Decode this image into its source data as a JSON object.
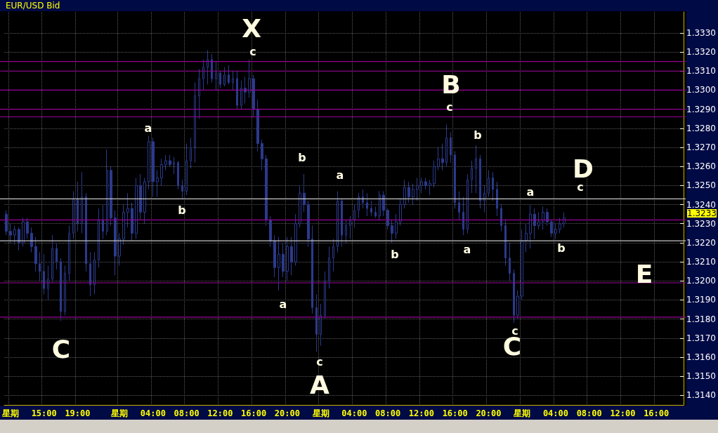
{
  "chart_data": {
    "type": "candlestick",
    "title": "EUR/USD Bid",
    "color": "#2b3a8c",
    "grid": true,
    "ylim": [
      1.3135,
      1.3341
    ],
    "yticks": [
      {
        "value": 1.314,
        "label": "1.3140"
      },
      {
        "value": 1.315,
        "label": "1.3150"
      },
      {
        "value": 1.316,
        "label": "1.3160"
      },
      {
        "value": 1.317,
        "label": "1.3170"
      },
      {
        "value": 1.318,
        "label": "1.3180"
      },
      {
        "value": 1.319,
        "label": "1.3190"
      },
      {
        "value": 1.32,
        "label": "1.3200"
      },
      {
        "value": 1.321,
        "label": "1.3210"
      },
      {
        "value": 1.322,
        "label": "1.3220"
      },
      {
        "value": 1.323,
        "label": "1.3230"
      },
      {
        "value": 1.324,
        "label": "1.3240"
      },
      {
        "value": 1.325,
        "label": "1.3250"
      },
      {
        "value": 1.326,
        "label": "1.3260"
      },
      {
        "value": 1.327,
        "label": "1.3270"
      },
      {
        "value": 1.328,
        "label": "1.3280"
      },
      {
        "value": 1.329,
        "label": "1.3290"
      },
      {
        "value": 1.33,
        "label": "1.3300"
      },
      {
        "value": 1.331,
        "label": "1.3310"
      },
      {
        "value": 1.332,
        "label": "1.3320"
      },
      {
        "value": 1.333,
        "label": "1.3330"
      }
    ],
    "categories": [
      null,
      "星期",
      null,
      null,
      null,
      null,
      null,
      null,
      null,
      "15:00",
      null,
      null,
      null,
      null,
      null,
      null,
      null,
      "19:00",
      null,
      null,
      null,
      null,
      null,
      null,
      null,
      null,
      null,
      "星期",
      null,
      null,
      null,
      null,
      null,
      null,
      null,
      "04:00",
      null,
      null,
      null,
      null,
      null,
      null,
      null,
      "08:00",
      null,
      null,
      null,
      null,
      null,
      null,
      null,
      "12:00",
      null,
      null,
      null,
      null,
      null,
      null,
      null,
      "16:00",
      null,
      null,
      null,
      null,
      null,
      null,
      null,
      "20:00",
      null,
      null,
      null,
      null,
      null,
      null,
      null,
      "星期",
      null,
      null,
      null,
      null,
      null,
      null,
      null,
      "04:00",
      null,
      null,
      null,
      null,
      null,
      null,
      null,
      "08:00",
      null,
      null,
      null,
      null,
      null,
      null,
      null,
      "12:00",
      null,
      null,
      null,
      null,
      null,
      null,
      null,
      "16:00",
      null,
      null,
      null,
      null,
      null,
      null,
      null,
      "20:00",
      null,
      null,
      null,
      null,
      null,
      null,
      null,
      "星期",
      null,
      null,
      null,
      null,
      null,
      null,
      null,
      "04:00",
      null,
      null,
      null,
      null,
      null,
      null,
      null,
      "08:00",
      null,
      null,
      null,
      null,
      null,
      null,
      null,
      "12:00",
      null,
      null,
      null,
      null,
      null,
      null,
      null,
      "16:00",
      null,
      null,
      null,
      null,
      null,
      null
    ],
    "ohlc": [
      [
        1.3235,
        1.3237,
        1.3224,
        1.3226
      ],
      [
        1.3226,
        1.323,
        1.322,
        1.3224
      ],
      [
        1.3224,
        1.3229,
        1.3219,
        1.3227
      ],
      [
        1.3227,
        1.3228,
        1.3216,
        1.322
      ],
      [
        1.322,
        1.3233,
        1.3218,
        1.3231
      ],
      [
        1.3231,
        1.3233,
        1.3222,
        1.3225
      ],
      [
        1.3225,
        1.3228,
        1.3215,
        1.3218
      ],
      [
        1.3218,
        1.3223,
        1.3205,
        1.3209
      ],
      [
        1.3209,
        1.3215,
        1.32,
        1.3205
      ],
      [
        1.3205,
        1.3214,
        1.3193,
        1.3196
      ],
      [
        1.3196,
        1.3208,
        1.319,
        1.3201
      ],
      [
        1.3201,
        1.3224,
        1.3199,
        1.3217
      ],
      [
        1.3217,
        1.322,
        1.3206,
        1.321
      ],
      [
        1.321,
        1.3212,
        1.3179,
        1.3184
      ],
      [
        1.3184,
        1.3208,
        1.3182,
        1.3204
      ],
      [
        1.3204,
        1.3229,
        1.32,
        1.3225
      ],
      [
        1.3225,
        1.3247,
        1.3222,
        1.3243
      ],
      [
        1.3243,
        1.3252,
        1.3226,
        1.323
      ],
      [
        1.323,
        1.3257,
        1.3225,
        1.3244
      ],
      [
        1.3244,
        1.3246,
        1.3205,
        1.3209
      ],
      [
        1.3209,
        1.3215,
        1.3192,
        1.3198
      ],
      [
        1.3198,
        1.3215,
        1.3193,
        1.3211
      ],
      [
        1.3211,
        1.3238,
        1.3207,
        1.3232
      ],
      [
        1.3232,
        1.324,
        1.3222,
        1.3226
      ],
      [
        1.3226,
        1.3269,
        1.3224,
        1.3258
      ],
      [
        1.3258,
        1.326,
        1.3229,
        1.3233
      ],
      [
        1.3233,
        1.3237,
        1.3203,
        1.3213
      ],
      [
        1.3213,
        1.3225,
        1.3208,
        1.3222
      ],
      [
        1.3222,
        1.324,
        1.3219,
        1.3236
      ],
      [
        1.3236,
        1.3246,
        1.3228,
        1.3238
      ],
      [
        1.3238,
        1.3241,
        1.3221,
        1.3225
      ],
      [
        1.3225,
        1.3254,
        1.3222,
        1.325
      ],
      [
        1.325,
        1.3256,
        1.3232,
        1.3236
      ],
      [
        1.3236,
        1.3254,
        1.323,
        1.3252
      ],
      [
        1.3252,
        1.3276,
        1.3248,
        1.3273
      ],
      [
        1.3273,
        1.3275,
        1.3244,
        1.3252
      ],
      [
        1.3252,
        1.3258,
        1.3244,
        1.3254
      ],
      [
        1.3254,
        1.3264,
        1.325,
        1.3261
      ],
      [
        1.3261,
        1.3266,
        1.3258,
        1.3263
      ],
      [
        1.3263,
        1.3266,
        1.326,
        1.3261
      ],
      [
        1.3261,
        1.3265,
        1.3256,
        1.3262
      ],
      [
        1.3262,
        1.3263,
        1.3248,
        1.325
      ],
      [
        1.325,
        1.3253,
        1.3243,
        1.3247
      ],
      [
        1.3247,
        1.3272,
        1.3245,
        1.3263
      ],
      [
        1.3263,
        1.3275,
        1.3259,
        1.327
      ],
      [
        1.327,
        1.3304,
        1.3262,
        1.3297
      ],
      [
        1.3297,
        1.3311,
        1.3285,
        1.3306
      ],
      [
        1.3306,
        1.3316,
        1.33,
        1.3312
      ],
      [
        1.3312,
        1.3321,
        1.3303,
        1.3316
      ],
      [
        1.3316,
        1.3319,
        1.3304,
        1.3306
      ],
      [
        1.3306,
        1.3315,
        1.33,
        1.3309
      ],
      [
        1.3309,
        1.331,
        1.3301,
        1.3303
      ],
      [
        1.3303,
        1.3312,
        1.3302,
        1.3308
      ],
      [
        1.3308,
        1.3313,
        1.3303,
        1.3304
      ],
      [
        1.3304,
        1.331,
        1.33,
        1.3306
      ],
      [
        1.3306,
        1.331,
        1.329,
        1.3292
      ],
      [
        1.3292,
        1.3305,
        1.329,
        1.3301
      ],
      [
        1.3301,
        1.3307,
        1.3293,
        1.3299
      ],
      [
        1.3299,
        1.3316,
        1.3296,
        1.3306
      ],
      [
        1.3306,
        1.3308,
        1.3286,
        1.329
      ],
      [
        1.329,
        1.3295,
        1.3268,
        1.3272
      ],
      [
        1.3272,
        1.3274,
        1.3258,
        1.3264
      ],
      [
        1.3264,
        1.3266,
        1.3229,
        1.3232
      ],
      [
        1.3232,
        1.3234,
        1.3218,
        1.3221
      ],
      [
        1.3221,
        1.3224,
        1.3202,
        1.3207
      ],
      [
        1.3207,
        1.3223,
        1.3195,
        1.3214
      ],
      [
        1.3214,
        1.322,
        1.3202,
        1.3205
      ],
      [
        1.3205,
        1.3223,
        1.32,
        1.3218
      ],
      [
        1.3218,
        1.3223,
        1.3203,
        1.321
      ],
      [
        1.321,
        1.3235,
        1.3208,
        1.323
      ],
      [
        1.323,
        1.325,
        1.3228,
        1.3246
      ],
      [
        1.3246,
        1.3256,
        1.3236,
        1.324
      ],
      [
        1.324,
        1.3242,
        1.3218,
        1.3222
      ],
      [
        1.3222,
        1.3229,
        1.3183,
        1.3186
      ],
      [
        1.3186,
        1.3193,
        1.3163,
        1.3172
      ],
      [
        1.3172,
        1.3188,
        1.3166,
        1.3182
      ],
      [
        1.3182,
        1.3205,
        1.318,
        1.32
      ],
      [
        1.32,
        1.3218,
        1.3196,
        1.3212
      ],
      [
        1.3212,
        1.3222,
        1.3205,
        1.3218
      ],
      [
        1.3218,
        1.3247,
        1.3215,
        1.3242
      ],
      [
        1.3242,
        1.3243,
        1.3218,
        1.3224
      ],
      [
        1.3224,
        1.3232,
        1.322,
        1.3229
      ],
      [
        1.3229,
        1.3234,
        1.3222,
        1.3232
      ],
      [
        1.3232,
        1.324,
        1.3228,
        1.3237
      ],
      [
        1.3237,
        1.3246,
        1.3233,
        1.3244
      ],
      [
        1.3244,
        1.3248,
        1.3238,
        1.3241
      ],
      [
        1.3241,
        1.3246,
        1.3234,
        1.3238
      ],
      [
        1.3238,
        1.3242,
        1.3234,
        1.3236
      ],
      [
        1.3236,
        1.3239,
        1.3233,
        1.3234
      ],
      [
        1.3234,
        1.3247,
        1.3232,
        1.3245
      ],
      [
        1.3245,
        1.3247,
        1.3234,
        1.3237
      ],
      [
        1.3237,
        1.3238,
        1.3227,
        1.3229
      ],
      [
        1.3229,
        1.3232,
        1.322,
        1.3225
      ],
      [
        1.3225,
        1.3235,
        1.3222,
        1.3231
      ],
      [
        1.3231,
        1.3243,
        1.3229,
        1.324
      ],
      [
        1.324,
        1.3253,
        1.3238,
        1.3249
      ],
      [
        1.3249,
        1.3252,
        1.3241,
        1.3244
      ],
      [
        1.3244,
        1.3251,
        1.324,
        1.3248
      ],
      [
        1.3248,
        1.3254,
        1.3242,
        1.325
      ],
      [
        1.325,
        1.3254,
        1.3246,
        1.3252
      ],
      [
        1.3252,
        1.3254,
        1.3248,
        1.325
      ],
      [
        1.325,
        1.3253,
        1.3245,
        1.3251
      ],
      [
        1.3251,
        1.3263,
        1.3249,
        1.326
      ],
      [
        1.326,
        1.327,
        1.3258,
        1.3264
      ],
      [
        1.3264,
        1.3272,
        1.3258,
        1.3262
      ],
      [
        1.3262,
        1.3282,
        1.326,
        1.3275
      ],
      [
        1.3275,
        1.3278,
        1.3262,
        1.3266
      ],
      [
        1.3266,
        1.3268,
        1.3238,
        1.3241
      ],
      [
        1.3241,
        1.3247,
        1.3232,
        1.3236
      ],
      [
        1.3236,
        1.3244,
        1.3224,
        1.3227
      ],
      [
        1.3227,
        1.3256,
        1.3225,
        1.3253
      ],
      [
        1.3253,
        1.3263,
        1.3246,
        1.3259
      ],
      [
        1.3259,
        1.3271,
        1.3246,
        1.3264
      ],
      [
        1.3264,
        1.3266,
        1.3238,
        1.3242
      ],
      [
        1.3242,
        1.325,
        1.3236,
        1.3246
      ],
      [
        1.3246,
        1.3258,
        1.3244,
        1.3254
      ],
      [
        1.3254,
        1.3257,
        1.3242,
        1.3248
      ],
      [
        1.3248,
        1.3252,
        1.3234,
        1.3238
      ],
      [
        1.3238,
        1.324,
        1.3226,
        1.3229
      ],
      [
        1.3229,
        1.3232,
        1.3208,
        1.3212
      ],
      [
        1.3212,
        1.322,
        1.32,
        1.3204
      ],
      [
        1.3204,
        1.3206,
        1.3178,
        1.3182
      ],
      [
        1.3182,
        1.3195,
        1.318,
        1.3192
      ],
      [
        1.3192,
        1.3227,
        1.319,
        1.3221
      ],
      [
        1.3221,
        1.323,
        1.3215,
        1.3225
      ],
      [
        1.3225,
        1.324,
        1.3217,
        1.3235
      ],
      [
        1.3235,
        1.3238,
        1.3222,
        1.3229
      ],
      [
        1.3229,
        1.3236,
        1.3227,
        1.3231
      ],
      [
        1.3231,
        1.3239,
        1.3227,
        1.3236
      ],
      [
        1.3236,
        1.3238,
        1.3229,
        1.3231
      ],
      [
        1.3231,
        1.3232,
        1.3223,
        1.3225
      ],
      [
        1.3225,
        1.323,
        1.3222,
        1.3227
      ],
      [
        1.3227,
        1.3233,
        1.3225,
        1.323
      ],
      [
        1.323,
        1.3236,
        1.3228,
        1.3233
      ],
      null,
      null,
      null,
      null,
      null,
      null,
      null,
      null,
      null,
      null,
      null,
      null,
      null,
      null,
      null,
      null,
      null,
      null,
      null,
      null,
      null,
      null,
      null,
      null,
      null,
      null,
      null,
      null
    ],
    "ref_lines": [
      {
        "axis": "y",
        "value": 1.3315,
        "color": "#990099"
      },
      {
        "axis": "y",
        "value": 1.331,
        "color": "#990099"
      },
      {
        "axis": "y",
        "value": 1.33,
        "color": "#990099"
      },
      {
        "axis": "y",
        "value": 1.329,
        "color": "#990099"
      },
      {
        "axis": "y",
        "value": 1.3286,
        "color": "#990099"
      },
      {
        "axis": "y",
        "value": 1.3243,
        "color": "#c8c8c8"
      },
      {
        "axis": "y",
        "value": 1.3232,
        "color": "#990099"
      },
      {
        "axis": "y",
        "value": 1.3221,
        "color": "#c8c8c8"
      },
      {
        "axis": "y",
        "value": 1.3199,
        "color": "#990099"
      },
      {
        "axis": "y",
        "value": 1.3181,
        "color": "#990099"
      }
    ],
    "annotations": [
      "X",
      "c",
      "a",
      "b",
      "C",
      "b",
      "a",
      "c",
      "A",
      "a",
      "b",
      "B",
      "c",
      "b",
      "a",
      "c",
      "C",
      "a",
      "b",
      "D",
      "c",
      "E",
      "1.3233"
    ]
  }
}
